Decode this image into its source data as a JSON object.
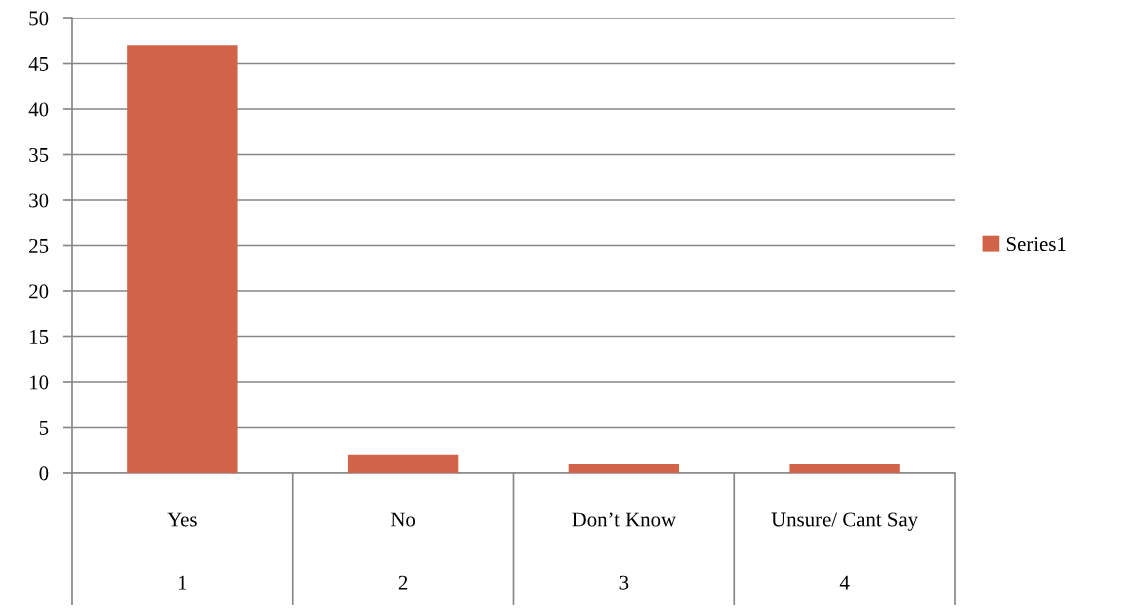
{
  "chart_data": {
    "type": "bar",
    "categories": [
      "Yes",
      "No",
      "Don’t Know",
      "Unsure/ Cant Say"
    ],
    "series": [
      {
        "name": "Series1",
        "color": "#d16349",
        "values": [
          47,
          2,
          1,
          1
        ]
      }
    ],
    "ylim": [
      0,
      50
    ],
    "yticks": [
      0,
      5,
      10,
      15,
      20,
      25,
      30,
      35,
      40,
      45,
      50
    ],
    "grid": "y",
    "legend": "right",
    "annotations": [
      "1",
      "2",
      "3",
      "4"
    ]
  }
}
